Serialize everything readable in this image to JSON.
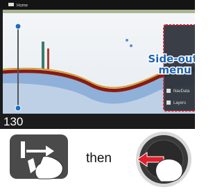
{
  "screen": {
    "header": "Home",
    "depth": "130",
    "menu_items": [
      "NavData",
      "Layers"
    ],
    "callout": [
      "Side-out",
      "menu"
    ]
  },
  "instruction": "then"
}
